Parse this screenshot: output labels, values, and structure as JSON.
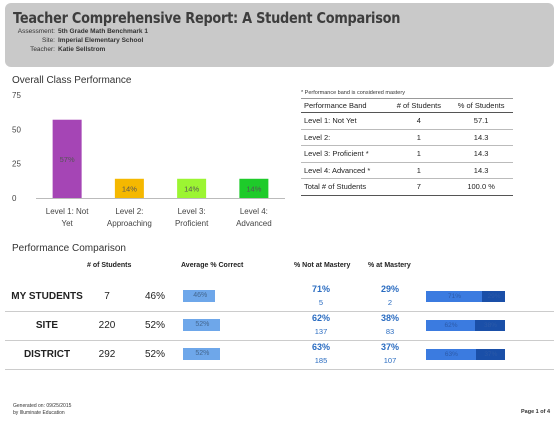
{
  "header": {
    "title": "Teacher Comprehensive Report: A Student Comparison",
    "assessment_label": "Assessment:",
    "assessment_value": "5th Grade Math Benchmark 1",
    "site_label": "Site:",
    "site_value": "Imperial Elementary School",
    "teacher_label": "Teacher:",
    "teacher_value": "Katie Sellstrom"
  },
  "overall": {
    "section_title": "Overall Class Performance"
  },
  "chart_data": {
    "type": "bar",
    "title": "",
    "categories": [
      "Level 1: Not Yet",
      "Level 2: Approaching",
      "Level 3: Proficient",
      "Level 4: Advanced"
    ],
    "category_lines": [
      [
        "Level 1: Not",
        "Yet"
      ],
      [
        "Level 2:",
        "Approaching"
      ],
      [
        "Level 3:",
        "Proficient"
      ],
      [
        "Level 4:",
        "Advanced"
      ]
    ],
    "values": [
      57,
      14,
      14,
      14
    ],
    "data_labels": [
      "57%",
      "14%",
      "14%",
      "14%"
    ],
    "colors": [
      "#a545b5",
      "#f5b800",
      "#9cf532",
      "#1ecb2a"
    ],
    "ylim": [
      0,
      75
    ],
    "yticks": [
      0,
      25,
      50,
      75
    ],
    "grid": false,
    "legend": "none"
  },
  "band_table": {
    "note": "* Performance band is considered mastery",
    "headers": [
      "Performance Band",
      "# of Students",
      "% of Students"
    ],
    "rows": [
      [
        "Level 1: Not Yet",
        "4",
        "57.1"
      ],
      [
        "Level 2:",
        "1",
        "14.3"
      ],
      [
        "Level 3: Proficient *",
        "1",
        "14.3"
      ],
      [
        "Level 4: Advanced *",
        "1",
        "14.3"
      ],
      [
        "Total # of Students",
        "7",
        "100.0 %"
      ]
    ]
  },
  "comparison": {
    "section_title": "Performance Comparison",
    "col_students": "# of Students",
    "col_avg": "Average % Correct",
    "col_not_mastery": "% Not at Mastery",
    "col_mastery": "% at Mastery",
    "rows": [
      {
        "name": "MY STUDENTS",
        "students": "7",
        "avg": "46%",
        "avg_value": 46,
        "avg_label": "46%",
        "not_pct": "71%",
        "not_count": "5",
        "mastery_pct": "29%",
        "mastery_count": "2",
        "not_value": 71,
        "mastery_value": 29,
        "not_label": "71%",
        "mastery_label": "29%"
      },
      {
        "name": "SITE",
        "students": "220",
        "avg": "52%",
        "avg_value": 52,
        "avg_label": "52%",
        "not_pct": "62%",
        "not_count": "137",
        "mastery_pct": "38%",
        "mastery_count": "83",
        "not_value": 62,
        "mastery_value": 38,
        "not_label": "62%",
        "mastery_label": "38%"
      },
      {
        "name": "DISTRICT",
        "students": "292",
        "avg": "52%",
        "avg_value": 52,
        "avg_label": "52%",
        "not_pct": "63%",
        "not_count": "185",
        "mastery_pct": "37%",
        "mastery_count": "107",
        "not_value": 63,
        "mastery_value": 37,
        "not_label": "63%",
        "mastery_label": "37%"
      }
    ]
  },
  "footer": {
    "generated": "Generated on: 09/25/2015",
    "by": "by Illuminate Education",
    "page": "Page 1 of 4"
  }
}
